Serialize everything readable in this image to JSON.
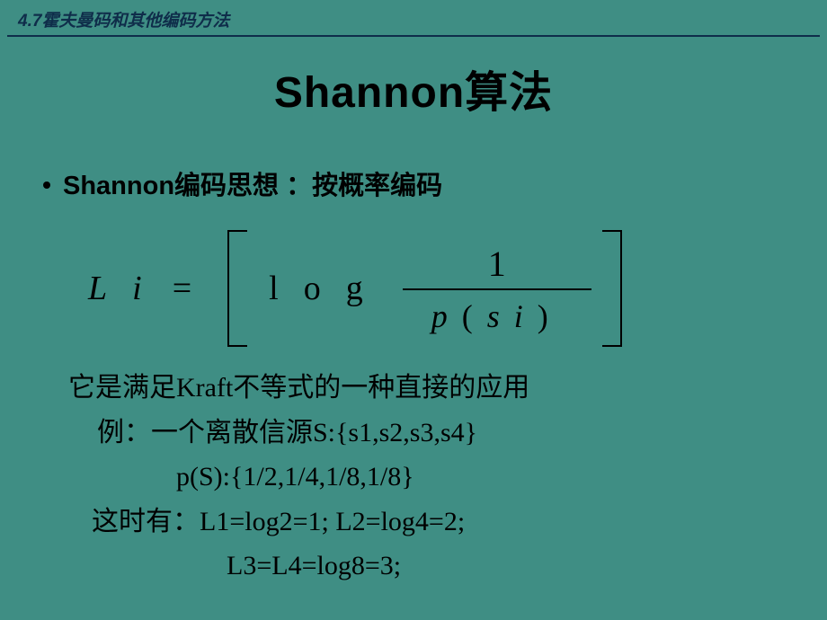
{
  "colors": {
    "background": "#3f8e84",
    "header_text": "#0f2d4a",
    "header_line": "#0f2d4a",
    "text": "#000000"
  },
  "typography": {
    "title_fontsize": 48,
    "bullet_fontsize": 29,
    "body_fontsize": 30,
    "header_fontsize": 19,
    "formula_fontsize": 38
  },
  "header": {
    "text": "4.7霍夫曼码和其他编码方法"
  },
  "title": "Shannon算法",
  "bullet": {
    "text": "Shannon编码思想 ：按概率编码"
  },
  "formula": {
    "lhs_L": "L",
    "lhs_i": "i",
    "eq": "=",
    "log": "log",
    "numerator": "1",
    "denom_p": "p",
    "denom_open": "(",
    "denom_s": "s",
    "denom_i": "i",
    "denom_close": ")"
  },
  "body": {
    "line1": "它是满足Kraft不等式的一种直接的应用",
    "line2": "例：一个离散信源S:{s1,s2,s3,s4}",
    "line3": "p(S):{1/2,1/4,1/8,1/8}",
    "line4": "这时有：L1=log2=1;  L2=log4=2;",
    "line5": "L3=L4=log8=3;"
  }
}
